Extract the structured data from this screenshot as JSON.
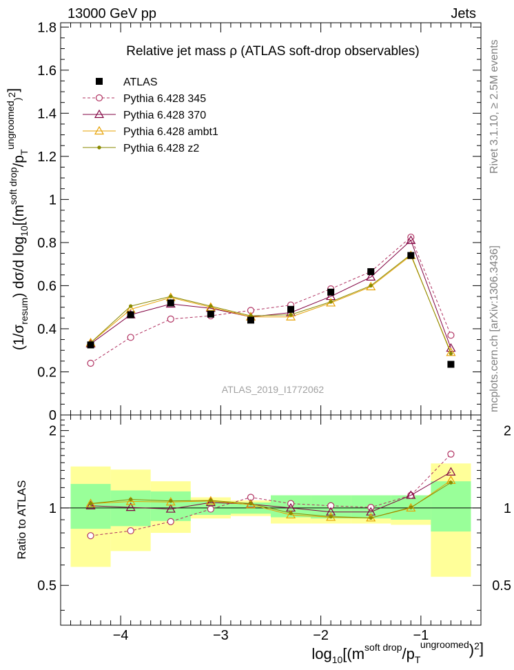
{
  "header": {
    "left": "13000 GeV pp",
    "right": "Jets"
  },
  "side_labels": {
    "rivet": "Rivet 3.1.10, ≥ 2.5M events",
    "mcplots": "mcplots.cern.ch [arXiv:1306.3436]"
  },
  "chart_data": {
    "type": "line",
    "title": "Relative jet mass  ρ (ATLAS soft-drop observables)",
    "watermark": "ATLAS_2019_I1772062",
    "xlabel": "log10[(m^{soft drop}/p_T^{ungroomed})^2]",
    "ylabel": "(1/σ_resum) dσ/d log10[(m^{soft drop}/p_T^{ungroomed})^2]",
    "ratio_ylabel": "Ratio to ATLAS",
    "xlim": [
      -4.6,
      -0.4
    ],
    "ylim": [
      0,
      1.82
    ],
    "ratio_ylim": [
      0.35,
      2.3
    ],
    "x_ticks": [
      "−4",
      "−3",
      "−2",
      "−1"
    ],
    "y_ticks": [
      "0",
      "0.2",
      "0.4",
      "0.6",
      "0.8",
      "1",
      "1.2",
      "1.4",
      "1.6",
      "1.8"
    ],
    "ratio_ticks": [
      "0.5",
      "1",
      "2"
    ],
    "legend_position": "top-left",
    "bins": [
      [
        -4.5,
        -4.1
      ],
      [
        -4.1,
        -3.7
      ],
      [
        -3.7,
        -3.3
      ],
      [
        -3.3,
        -2.9
      ],
      [
        -2.9,
        -2.5
      ],
      [
        -2.5,
        -2.1
      ],
      [
        -2.1,
        -1.7
      ],
      [
        -1.7,
        -1.3
      ],
      [
        -1.3,
        -0.9
      ],
      [
        -0.9,
        -0.5
      ]
    ],
    "x": [
      -4.3,
      -3.9,
      -3.5,
      -3.1,
      -2.7,
      -2.3,
      -1.9,
      -1.5,
      -1.1,
      -0.7
    ],
    "data": {
      "name": "ATLAS",
      "values": [
        0.325,
        0.465,
        0.52,
        0.468,
        0.44,
        0.49,
        0.57,
        0.665,
        0.74,
        0.235
      ],
      "band_inner": [
        [
          0.83,
          1.24
        ],
        [
          0.85,
          1.17
        ],
        [
          0.89,
          1.16
        ],
        [
          0.94,
          1.06
        ],
        [
          0.95,
          1.05
        ],
        [
          0.92,
          1.12
        ],
        [
          0.91,
          1.12
        ],
        [
          0.91,
          1.12
        ],
        [
          0.9,
          1.12
        ],
        [
          0.81,
          1.27
        ]
      ],
      "band_outer": [
        [
          0.59,
          1.45
        ],
        [
          0.68,
          1.41
        ],
        [
          0.8,
          1.27
        ],
        [
          0.91,
          1.1
        ],
        [
          0.93,
          1.07
        ],
        [
          0.87,
          1.12
        ],
        [
          0.87,
          1.12
        ],
        [
          0.87,
          1.12
        ],
        [
          0.86,
          1.12
        ],
        [
          0.54,
          1.49
        ]
      ]
    },
    "series": [
      {
        "name": "Pythia 6.428 345",
        "color": "#b03060",
        "marker": "circle",
        "dashed": true,
        "values": [
          0.24,
          0.36,
          0.445,
          0.46,
          0.485,
          0.51,
          0.585,
          0.665,
          0.825,
          0.37
        ],
        "ratio": [
          0.78,
          0.815,
          0.885,
          0.99,
          1.1,
          1.04,
          1.02,
          1.005,
          1.12,
          1.62
        ]
      },
      {
        "name": "Pythia 6.428 370",
        "color": "#800040",
        "marker": "triangle",
        "dashed": false,
        "values": [
          0.33,
          0.465,
          0.515,
          0.495,
          0.455,
          0.475,
          0.55,
          0.64,
          0.81,
          0.31
        ],
        "ratio": [
          1.02,
          1.005,
          0.99,
          1.05,
          1.035,
          1.0,
          0.965,
          0.965,
          1.12,
          1.38
        ]
      },
      {
        "name": "Pythia 6.428 ambt1",
        "color": "#e6a000",
        "marker": "triangle",
        "dashed": false,
        "values": [
          0.335,
          0.49,
          0.545,
          0.5,
          0.455,
          0.455,
          0.52,
          0.595,
          0.74,
          0.29
        ],
        "ratio": [
          1.04,
          1.06,
          1.055,
          1.065,
          1.03,
          0.94,
          0.92,
          0.915,
          1.0,
          1.28
        ]
      },
      {
        "name": "Pythia 6.428 z2",
        "color": "#8a8a00",
        "marker": "dot",
        "dashed": false,
        "values": [
          0.335,
          0.505,
          0.55,
          0.505,
          0.46,
          0.465,
          0.525,
          0.6,
          0.745,
          0.285
        ],
        "ratio": [
          1.04,
          1.08,
          1.065,
          1.07,
          1.04,
          0.955,
          0.925,
          0.915,
          1.005,
          1.255
        ]
      }
    ]
  }
}
